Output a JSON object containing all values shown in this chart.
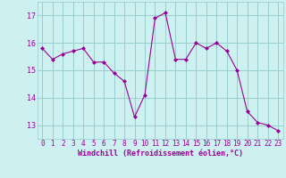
{
  "x": [
    0,
    1,
    2,
    3,
    4,
    5,
    6,
    7,
    8,
    9,
    10,
    11,
    12,
    13,
    14,
    15,
    16,
    17,
    18,
    19,
    20,
    21,
    22,
    23
  ],
  "y": [
    15.8,
    15.4,
    15.6,
    15.7,
    15.8,
    15.3,
    15.3,
    14.9,
    14.6,
    13.3,
    14.1,
    16.9,
    17.1,
    15.4,
    15.4,
    16.0,
    15.8,
    16.0,
    15.7,
    15.0,
    13.5,
    13.1,
    13.0,
    12.8
  ],
  "line_color": "#990099",
  "marker": "D",
  "marker_size": 2,
  "bg_color": "#cdf0f0",
  "grid_color": "#99cccc",
  "ylabel_ticks": [
    13,
    14,
    15,
    16,
    17
  ],
  "xlabel": "Windchill (Refroidissement éolien,°C)",
  "xlim": [
    -0.5,
    23.5
  ],
  "ylim": [
    12.5,
    17.5
  ],
  "tick_color": "#990099",
  "label_color": "#990099",
  "tick_fontsize": 5.5,
  "label_fontsize": 6.0
}
